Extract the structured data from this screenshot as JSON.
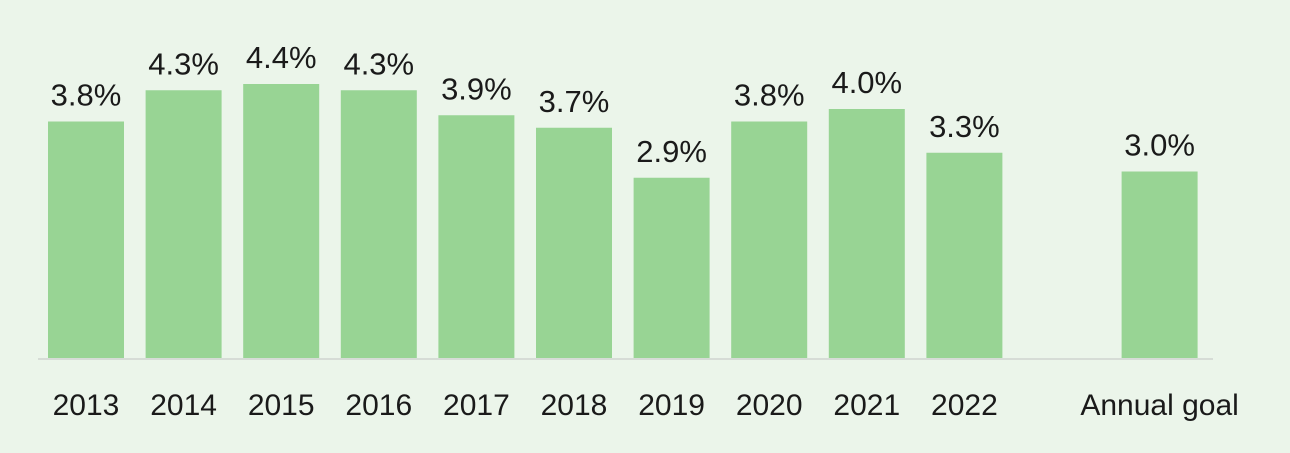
{
  "chart_data": {
    "type": "bar",
    "categories": [
      "2013",
      "2014",
      "2015",
      "2016",
      "2017",
      "2018",
      "2019",
      "2020",
      "2021",
      "2022",
      "Annual goal"
    ],
    "values": [
      3.8,
      4.3,
      4.4,
      4.3,
      3.9,
      3.7,
      2.9,
      3.8,
      4.0,
      3.3,
      3.0
    ],
    "data_labels": [
      "3.8%",
      "4.3%",
      "4.4%",
      "4.3%",
      "3.9%",
      "3.7%",
      "2.9%",
      "3.8%",
      "4.0%",
      "3.3%",
      "3.0%"
    ],
    "unit": "%",
    "title": "",
    "xlabel": "",
    "ylabel": "",
    "ylim": [
      0,
      4.4
    ],
    "grid": false,
    "legend": "none",
    "bar_color": "#98d494",
    "background_color": "#ebf5ea"
  }
}
